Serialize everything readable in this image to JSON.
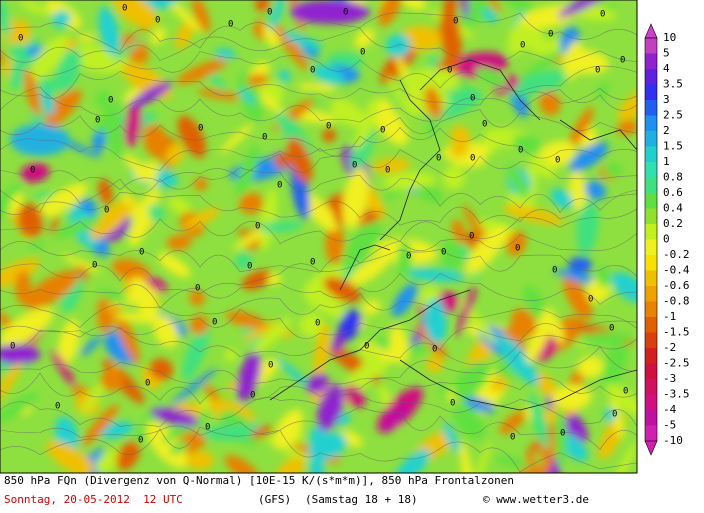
{
  "map": {
    "contour_label": "0"
  },
  "colorbar": {
    "labels": [
      "10",
      "5",
      "4",
      "3.5",
      "3",
      "2.5",
      "2",
      "1.5",
      "1",
      "0.8",
      "0.6",
      "0.4",
      "0.2",
      "0",
      "-0.2",
      "-0.4",
      "-0.6",
      "-0.8",
      "-1",
      "-1.5",
      "-2",
      "-2.5",
      "-3",
      "-3.5",
      "-4",
      "-5",
      "-10"
    ]
  },
  "footer": {
    "title": "850 hPa FQn (Divergenz von Q-Normal) [10E-15 K/(s*m*m)], 850 hPa Frontalzonen",
    "date": "Sonntag, 20-05-2012  12 UTC",
    "model": "(GFS)",
    "run": "(Samstag 18 + 18)",
    "copyright": "© www.wetter3.de"
  }
}
